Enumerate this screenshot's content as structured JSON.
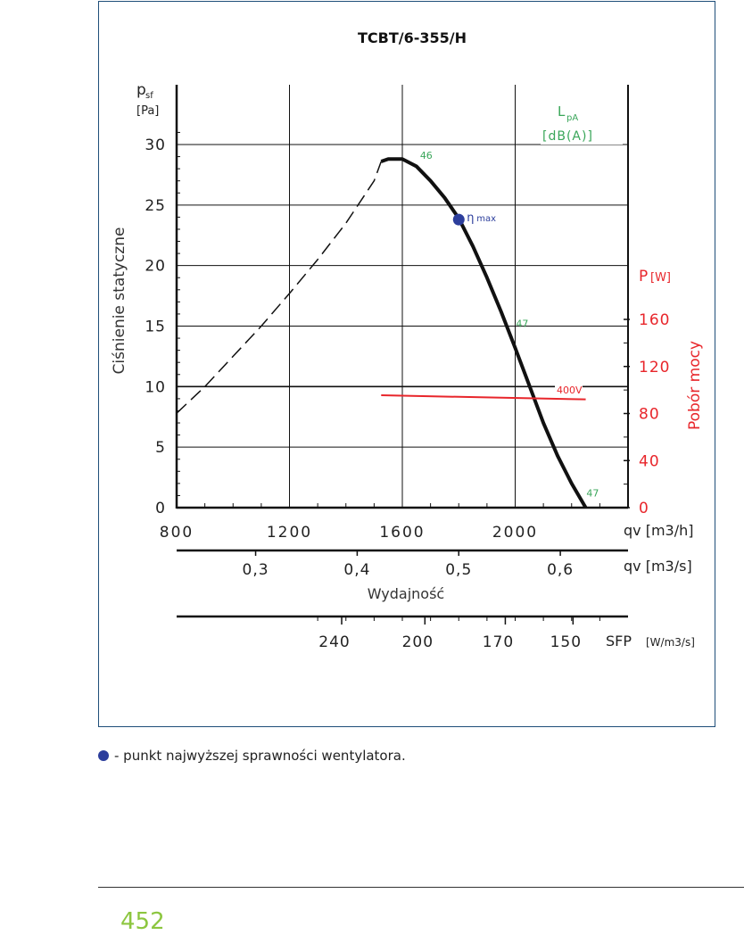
{
  "chart_data": {
    "type": "line",
    "title": "TCBT/6-355/H",
    "x": {
      "label": "qv [m3/h]",
      "range": [
        800,
        2400
      ],
      "ticks": [
        800,
        1200,
        1600,
        2000
      ],
      "tick_labels": [
        "800",
        "1200",
        "1600",
        "2000"
      ]
    },
    "x2": {
      "label": "qv [m3/s]",
      "ticks": [
        0.3,
        0.4,
        0.5,
        0.6
      ],
      "tick_labels": [
        "0,3",
        "0,4",
        "0,5",
        "0,6"
      ],
      "caption": "Wydajność"
    },
    "sfp_axis": {
      "label": "SFP",
      "unit": "[W/m3/s]",
      "tick_labels": [
        "240",
        "200",
        "170",
        "150"
      ],
      "tick_x_m3h": [
        1385,
        1680,
        1965,
        2205
      ]
    },
    "y": {
      "label": "Ciśnienie statyczne",
      "symbol": "psf",
      "unit": "[Pa]",
      "range": [
        0,
        30
      ],
      "ticks": [
        0,
        5,
        10,
        15,
        20,
        25,
        30
      ]
    },
    "y2": {
      "label": "Pobór mocy",
      "symbol": "P",
      "unit": "[W]",
      "range": [
        0,
        160
      ],
      "ticks": [
        0,
        40,
        80,
        120,
        160
      ],
      "color": "#e8262b"
    },
    "noise_label": {
      "line1": "LpA",
      "line2": "[dB(A)]",
      "color": "#3aa65a",
      "values": [
        {
          "text": "46",
          "x": 1650,
          "y": 28.6
        },
        {
          "text": "47",
          "x": 1990,
          "y": 14.7
        },
        {
          "text": "47",
          "x": 2240,
          "y": 0.7
        }
      ]
    },
    "series": [
      {
        "name": "unstable",
        "style": "dashed",
        "x": [
          800,
          900,
          1000,
          1100,
          1200,
          1300,
          1400,
          1500,
          1525
        ],
        "y": [
          7.8,
          10.0,
          12.5,
          15.0,
          17.7,
          20.5,
          23.5,
          27.0,
          28.6
        ]
      },
      {
        "name": "pressure",
        "style": "solid",
        "x": [
          1525,
          1550,
          1600,
          1650,
          1700,
          1750,
          1800,
          1850,
          1900,
          1950,
          2000,
          2050,
          2100,
          2150,
          2200,
          2250
        ],
        "y": [
          28.6,
          28.8,
          28.8,
          28.2,
          27.0,
          25.6,
          23.9,
          21.6,
          19.0,
          16.2,
          13.2,
          10.1,
          7.0,
          4.3,
          2.0,
          0.0
        ]
      },
      {
        "name": "400V",
        "style": "power",
        "axis": "y2",
        "x": [
          1525,
          2250
        ],
        "y": [
          95.5,
          92.0
        ]
      }
    ],
    "eta_max": {
      "label": "ηmax",
      "x": 1800,
      "y": 23.8,
      "color": "#2c3e9c"
    },
    "grid": true
  },
  "legend_text": "- punkt najwyższej sprawności wentylatora.",
  "page_number": "452"
}
